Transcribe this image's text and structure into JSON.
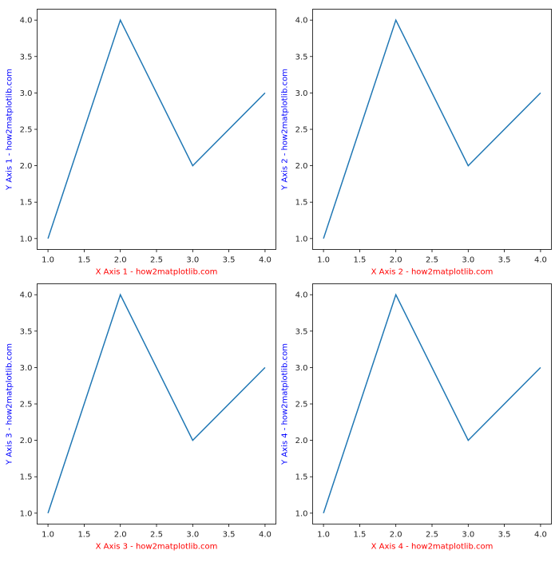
{
  "colors": {
    "line": "#1f77b4",
    "xlabel": "#ff0000",
    "ylabel": "#0000ff",
    "axes": "#000000"
  },
  "chart_data": [
    {
      "type": "line",
      "x": [
        1,
        2,
        3,
        4
      ],
      "y": [
        1,
        4,
        2,
        3
      ],
      "xlabel": "X Axis 1 - how2matplotlib.com",
      "ylabel": "Y Axis 1 - how2matplotlib.com",
      "xlim": [
        0.85,
        4.15
      ],
      "ylim": [
        0.85,
        4.15
      ],
      "xticks": [
        "1.0",
        "1.5",
        "2.0",
        "2.5",
        "3.0",
        "3.5",
        "4.0"
      ],
      "yticks": [
        "1.0",
        "1.5",
        "2.0",
        "2.5",
        "3.0",
        "3.5",
        "4.0"
      ],
      "grid": false
    },
    {
      "type": "line",
      "x": [
        1,
        2,
        3,
        4
      ],
      "y": [
        1,
        4,
        2,
        3
      ],
      "xlabel": "X Axis 2 - how2matplotlib.com",
      "ylabel": "Y Axis 2 - how2matplotlib.com",
      "xlim": [
        0.85,
        4.15
      ],
      "ylim": [
        0.85,
        4.15
      ],
      "xticks": [
        "1.0",
        "1.5",
        "2.0",
        "2.5",
        "3.0",
        "3.5",
        "4.0"
      ],
      "yticks": [
        "1.0",
        "1.5",
        "2.0",
        "2.5",
        "3.0",
        "3.5",
        "4.0"
      ],
      "grid": false
    },
    {
      "type": "line",
      "x": [
        1,
        2,
        3,
        4
      ],
      "y": [
        1,
        4,
        2,
        3
      ],
      "xlabel": "X Axis 3 - how2matplotlib.com",
      "ylabel": "Y Axis 3 - how2matplotlib.com",
      "xlim": [
        0.85,
        4.15
      ],
      "ylim": [
        0.85,
        4.15
      ],
      "xticks": [
        "1.0",
        "1.5",
        "2.0",
        "2.5",
        "3.0",
        "3.5",
        "4.0"
      ],
      "yticks": [
        "1.0",
        "1.5",
        "2.0",
        "2.5",
        "3.0",
        "3.5",
        "4.0"
      ],
      "grid": false
    },
    {
      "type": "line",
      "x": [
        1,
        2,
        3,
        4
      ],
      "y": [
        1,
        4,
        2,
        3
      ],
      "xlabel": "X Axis 4 - how2matplotlib.com",
      "ylabel": "Y Axis 4 - how2matplotlib.com",
      "xlim": [
        0.85,
        4.15
      ],
      "ylim": [
        0.85,
        4.15
      ],
      "xticks": [
        "1.0",
        "1.5",
        "2.0",
        "2.5",
        "3.0",
        "3.5",
        "4.0"
      ],
      "yticks": [
        "1.0",
        "1.5",
        "2.0",
        "2.5",
        "3.0",
        "3.5",
        "4.0"
      ],
      "grid": false
    }
  ]
}
